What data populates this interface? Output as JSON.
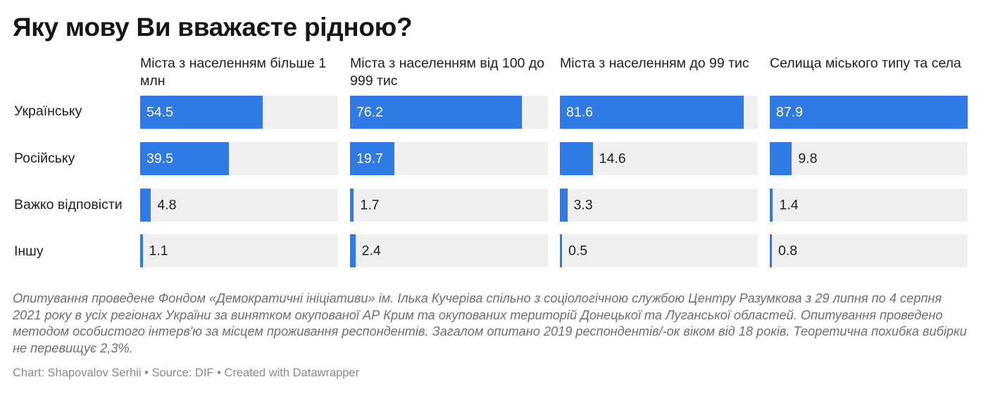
{
  "chart_data": {
    "type": "bar",
    "title": "Яку мову Ви вважаєте рідною?",
    "columns": [
      "Міста з населенням більше 1 млн",
      "Міста з населенням від 100 до 999 тис",
      "Міста з населенням до 99 тис",
      "Селища міського типу та села"
    ],
    "categories": [
      "Українську",
      "Російську",
      "Важко відповісти",
      "Іншу"
    ],
    "series": [
      {
        "name": "Міста з населенням більше 1 млн",
        "values": [
          54.5,
          39.5,
          4.8,
          1.1
        ]
      },
      {
        "name": "Міста з населенням від 100 до 999 тис",
        "values": [
          76.2,
          19.7,
          1.7,
          2.4
        ]
      },
      {
        "name": "Міста з населенням до 99 тис",
        "values": [
          81.6,
          14.6,
          3.3,
          0.5
        ]
      },
      {
        "name": "Селища міського типу та села",
        "values": [
          87.9,
          9.8,
          1.4,
          0.8
        ]
      }
    ],
    "xlim": [
      0,
      87.9
    ],
    "bar_color": "#2f7ae5",
    "track_color": "#efefef"
  },
  "notes": "Опитування проведене Фондом «Демократичні ініціативи» ім. Ілька Кучеріва спільно з соціологічною службою Центру Разумкова з 29 липня по 4 серпня 2021 року в усіх регіонах України за винятком окупованої АР Крим та окупованих територій Донецької та Луганської областей. Опитування проведено методом особистого інтерв'ю за місцем проживання респондентів. Загалом опитано 2019 респондентів/-ок віком від 18 років. Теоретична похибка вибірки не перевищує 2,3%.",
  "footer": "Chart: Shapovalov Serhii • Source: DIF • Created with Datawrapper"
}
